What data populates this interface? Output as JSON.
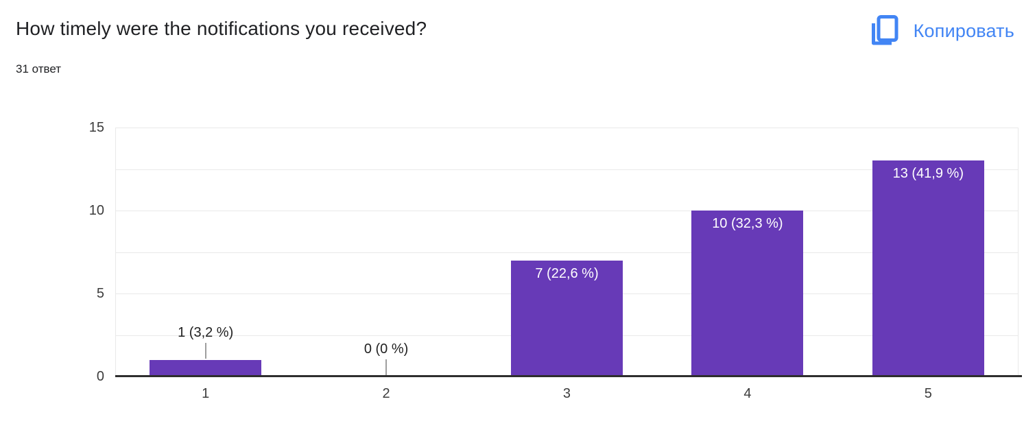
{
  "header": {
    "title": "How timely were the notifications you received?",
    "responses_count": "31 ответ",
    "copy_button_label": "Копировать",
    "copy_button_color": "#4285f4"
  },
  "chart_data": {
    "type": "bar",
    "title": "How timely were the notifications you received?",
    "subtitle": "31 ответ",
    "categories": [
      "1",
      "2",
      "3",
      "4",
      "5"
    ],
    "values": [
      1,
      0,
      7,
      10,
      13
    ],
    "bar_labels": [
      "1 (3,2 %)",
      "0 (0 %)",
      "7 (22,6 %)",
      "10 (32,3 %)",
      "13 (41,9 %)"
    ],
    "percentages": [
      3.2,
      0,
      22.6,
      32.3,
      41.9
    ],
    "total_responses": 31,
    "xlabel": "",
    "ylabel": "",
    "ylim": [
      0,
      15
    ],
    "yticks": [
      0,
      5,
      10,
      15
    ],
    "grid_step": 2.5,
    "grid": true,
    "legend": "none",
    "bar_color": "#673ab7",
    "inside_label_color": "#ffffff",
    "outside_label_color": "#212121",
    "leader_line_color": "#9e9e9e"
  }
}
